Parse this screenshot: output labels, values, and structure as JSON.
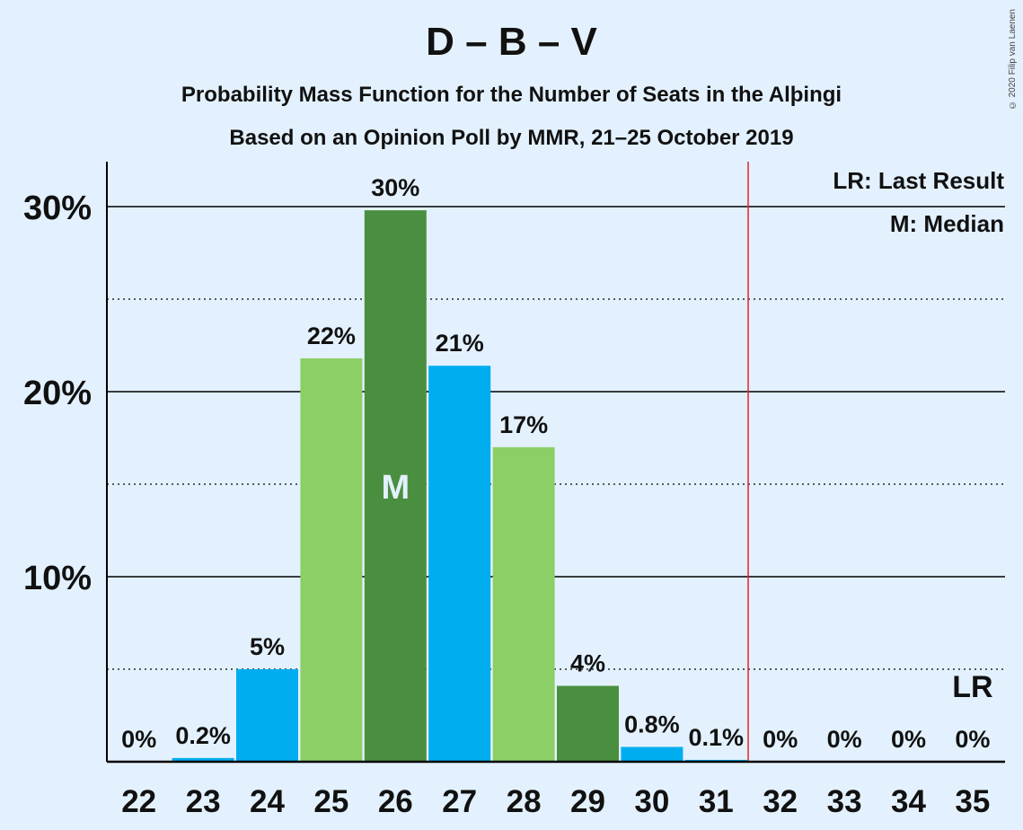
{
  "chart_data": {
    "type": "bar",
    "title": "D – B – V",
    "subtitle": "Probability Mass Function for the Number of Seats in the Alþingi",
    "subtitle2": "Based on an Opinion Poll by MMR, 21–25 October 2019",
    "copyright": "© 2020 Filip van Laenen",
    "categories": [
      "22",
      "23",
      "24",
      "25",
      "26",
      "27",
      "28",
      "29",
      "30",
      "31",
      "32",
      "33",
      "34",
      "35"
    ],
    "values": [
      0,
      0.2,
      5.0,
      21.8,
      29.8,
      21.4,
      17.0,
      4.1,
      0.8,
      0.1,
      0,
      0,
      0,
      0
    ],
    "data_labels": [
      "0%",
      "0.2%",
      "5%",
      "22%",
      "30%",
      "21%",
      "17%",
      "4%",
      "0.8%",
      "0.1%",
      "0%",
      "0%",
      "0%",
      "0%"
    ],
    "bar_colors": [
      "#4a8f3f",
      "#00adef",
      "#00adef",
      "#8bcf66",
      "#4a8f3f",
      "#00adef",
      "#8bcf66",
      "#4a8f3f",
      "#00adef",
      "#00adef",
      "#4a8f3f",
      "#4a8f3f",
      "#4a8f3f",
      "#4a8f3f"
    ],
    "yticks": [
      10,
      20,
      30
    ],
    "ytick_labels": [
      "10%",
      "20%",
      "30%"
    ],
    "minor_gridlines": [
      5,
      15,
      25
    ],
    "ylim": [
      0,
      32.5
    ],
    "median_seat": "26",
    "median_marker": "M",
    "last_result_seat": "35",
    "last_result_marker": "LR",
    "last_result_line_after": "31",
    "legend": [
      "LR: Last Result",
      "M: Median"
    ],
    "legend_position": "top-right",
    "colors": {
      "background": "#e3f1fe",
      "lr_line": "#e8232a",
      "axis": "#000000",
      "text": "#111111"
    }
  }
}
